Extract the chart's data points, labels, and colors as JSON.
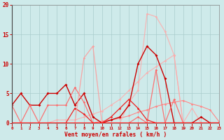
{
  "background_color": "#ceeaea",
  "grid_color": "#aacccc",
  "xlabel": "Vent moyen/en rafales ( km/h )",
  "xlim": [
    0,
    23
  ],
  "ylim": [
    0,
    20
  ],
  "yticks": [
    0,
    5,
    10,
    15,
    20
  ],
  "xticks": [
    0,
    1,
    2,
    3,
    4,
    5,
    6,
    7,
    8,
    9,
    10,
    11,
    12,
    13,
    14,
    15,
    16,
    17,
    18,
    19,
    20,
    21,
    22,
    23
  ],
  "series": [
    {
      "x": [
        0,
        1,
        2,
        3,
        4,
        5,
        6,
        7,
        8,
        9,
        10,
        11,
        12,
        13,
        14,
        15,
        16,
        17,
        18,
        19,
        20,
        21,
        22,
        23
      ],
      "y": [
        0,
        0,
        0,
        0,
        0,
        0,
        0,
        0,
        0,
        0,
        0,
        0,
        0,
        0,
        0,
        0,
        0,
        0,
        0,
        0,
        0,
        0,
        0,
        0
      ],
      "color": "#ff0000",
      "lw": 0.8,
      "marker": "D",
      "ms": 1.8,
      "alpha": 1.0
    },
    {
      "x": [
        0,
        1,
        2,
        3,
        4,
        5,
        6,
        7,
        8,
        9,
        10,
        11,
        12,
        13,
        14,
        15,
        16,
        17,
        18,
        19,
        20,
        21,
        22,
        23
      ],
      "y": [
        0,
        0,
        0,
        0,
        0,
        0,
        0,
        0,
        0,
        0,
        0.3,
        0.5,
        0.8,
        1.2,
        1.8,
        2.2,
        2.8,
        3.2,
        3.5,
        3.8,
        3.2,
        2.8,
        2.2,
        0.2
      ],
      "color": "#ff8888",
      "lw": 0.8,
      "marker": "D",
      "ms": 1.8,
      "alpha": 1.0
    },
    {
      "x": [
        0,
        1,
        2,
        3,
        4,
        5,
        6,
        7,
        8,
        9,
        10,
        11,
        12,
        13,
        14,
        15,
        16,
        17,
        18,
        19,
        20,
        21,
        22,
        23
      ],
      "y": [
        0,
        0,
        0,
        0,
        0,
        0.5,
        0.5,
        0.5,
        1.0,
        1.5,
        2.0,
        3.0,
        4.0,
        5.5,
        7.0,
        8.5,
        9.5,
        10.5,
        11.5,
        0,
        0,
        0,
        0,
        0
      ],
      "color": "#ffaaaa",
      "lw": 0.8,
      "marker": "D",
      "ms": 1.8,
      "alpha": 0.85
    },
    {
      "x": [
        0,
        1,
        2,
        3,
        4,
        5,
        6,
        7,
        8,
        9,
        10,
        11,
        12,
        13,
        14,
        15,
        16,
        17,
        18,
        19,
        20,
        21,
        22,
        23
      ],
      "y": [
        0,
        0,
        0,
        0,
        0,
        0,
        0,
        0,
        0,
        0,
        0,
        0,
        0,
        3.5,
        5.5,
        18.5,
        18.0,
        15.5,
        11.5,
        0,
        2.5,
        0,
        0,
        0
      ],
      "color": "#ffaaaa",
      "lw": 0.9,
      "marker": "D",
      "ms": 1.8,
      "alpha": 0.8
    },
    {
      "x": [
        0,
        1,
        2,
        3,
        4,
        5,
        6,
        7,
        8,
        9,
        10,
        11,
        12,
        13,
        14,
        15,
        16,
        17,
        18,
        19,
        20,
        21,
        22,
        23
      ],
      "y": [
        3,
        5,
        3,
        3,
        5,
        5,
        6.5,
        3,
        5,
        1,
        0,
        0.5,
        1,
        3,
        10,
        13,
        11.5,
        7.5,
        0,
        0,
        0,
        1,
        0,
        0
      ],
      "color": "#cc0000",
      "lw": 1.0,
      "marker": "D",
      "ms": 2.0,
      "alpha": 1.0
    },
    {
      "x": [
        0,
        1,
        2,
        3,
        4,
        5,
        6,
        7,
        8,
        9,
        10,
        11,
        12,
        13,
        14,
        15,
        16,
        17,
        18,
        19,
        20,
        21,
        22,
        23
      ],
      "y": [
        0,
        0,
        0,
        0,
        0,
        0,
        0,
        2.5,
        1.5,
        0,
        0,
        1.0,
        2.5,
        4.0,
        2.5,
        0.5,
        0,
        0,
        0,
        0,
        0,
        0,
        0,
        0
      ],
      "color": "#ee2222",
      "lw": 0.9,
      "marker": "D",
      "ms": 1.8,
      "alpha": 1.0
    },
    {
      "x": [
        0,
        1,
        2,
        3,
        4,
        5,
        6,
        7,
        8,
        9,
        10,
        11,
        12,
        13,
        14,
        15,
        16,
        17,
        18,
        19,
        20,
        21,
        22,
        23
      ],
      "y": [
        3,
        0,
        3,
        0,
        3,
        3,
        3,
        6,
        3.5,
        0,
        0,
        0,
        0,
        0,
        1,
        0,
        9,
        0,
        4,
        0,
        0,
        0,
        0,
        0
      ],
      "color": "#ff6666",
      "lw": 0.9,
      "marker": "D",
      "ms": 1.8,
      "alpha": 0.9
    },
    {
      "x": [
        0,
        1,
        2,
        3,
        4,
        5,
        6,
        7,
        8,
        9,
        10,
        11,
        12,
        13,
        14,
        15,
        16,
        17,
        18,
        19,
        20,
        21,
        22,
        23
      ],
      "y": [
        0,
        0,
        0,
        0,
        0,
        0,
        0,
        0,
        11,
        13,
        0,
        0,
        0,
        0,
        0,
        0,
        0,
        0,
        0,
        0,
        0,
        0,
        0,
        0
      ],
      "color": "#ff9999",
      "lw": 0.9,
      "marker": "D",
      "ms": 1.8,
      "alpha": 0.85
    }
  ]
}
